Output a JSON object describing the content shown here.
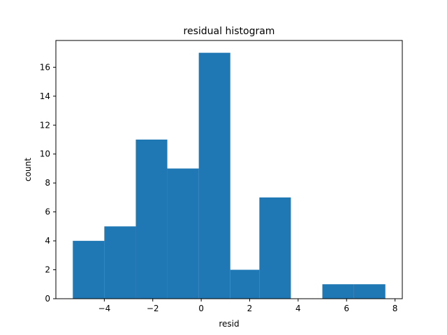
{
  "chart_data": {
    "type": "bar",
    "title": "residual histogram",
    "xlabel": "resid",
    "ylabel": "count",
    "bin_edges": [
      -5.3,
      -4.0,
      -2.7,
      -1.4,
      -0.1,
      1.2,
      2.4,
      3.7,
      5.0,
      6.3,
      7.6
    ],
    "counts": [
      4,
      5,
      11,
      9,
      17,
      2,
      7,
      0,
      1,
      1
    ],
    "xlim": [
      -6.0,
      8.3
    ],
    "ylim": [
      0,
      17.85
    ],
    "xticks": [
      -4,
      -2,
      0,
      2,
      4,
      6,
      8
    ],
    "xtick_labels": [
      "−4",
      "−2",
      "0",
      "2",
      "4",
      "6",
      "8"
    ],
    "yticks": [
      0,
      2,
      4,
      6,
      8,
      10,
      12,
      14,
      16
    ],
    "ytick_labels": [
      "0",
      "2",
      "4",
      "6",
      "8",
      "10",
      "12",
      "14",
      "16"
    ],
    "bar_color": "#1f77b4",
    "grid": false,
    "legend": "none"
  }
}
